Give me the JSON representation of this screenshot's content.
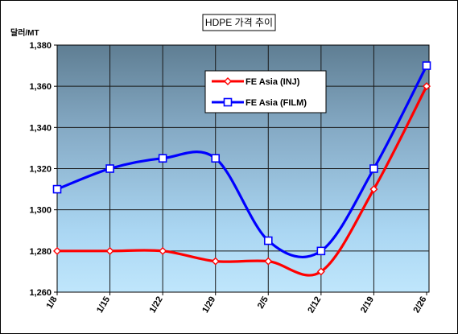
{
  "chart_data": {
    "type": "line",
    "title": "HDPE 가격 추이",
    "ylabel": "달러/MT",
    "xlabel": "",
    "categories": [
      "1/8",
      "1/15",
      "1/22",
      "1/29",
      "2/5",
      "2/12",
      "2/19",
      "2/26"
    ],
    "y_ticks": [
      "1,260",
      "1,280",
      "1,300",
      "1,320",
      "1,340",
      "1,360",
      "1,380"
    ],
    "ylim": [
      1260,
      1380
    ],
    "grid": true,
    "legend_position": "top-right",
    "series": [
      {
        "name": "FE Asia (INJ)",
        "color": "#ff0000",
        "marker": "diamond",
        "values": [
          1280,
          1280,
          1280,
          1275,
          1275,
          1270,
          1310,
          1360
        ]
      },
      {
        "name": "FE Asia (FILM)",
        "color": "#0000ff",
        "marker": "square",
        "values": [
          1310,
          1320,
          1325,
          1325,
          1285,
          1280,
          1320,
          1370
        ]
      }
    ]
  }
}
